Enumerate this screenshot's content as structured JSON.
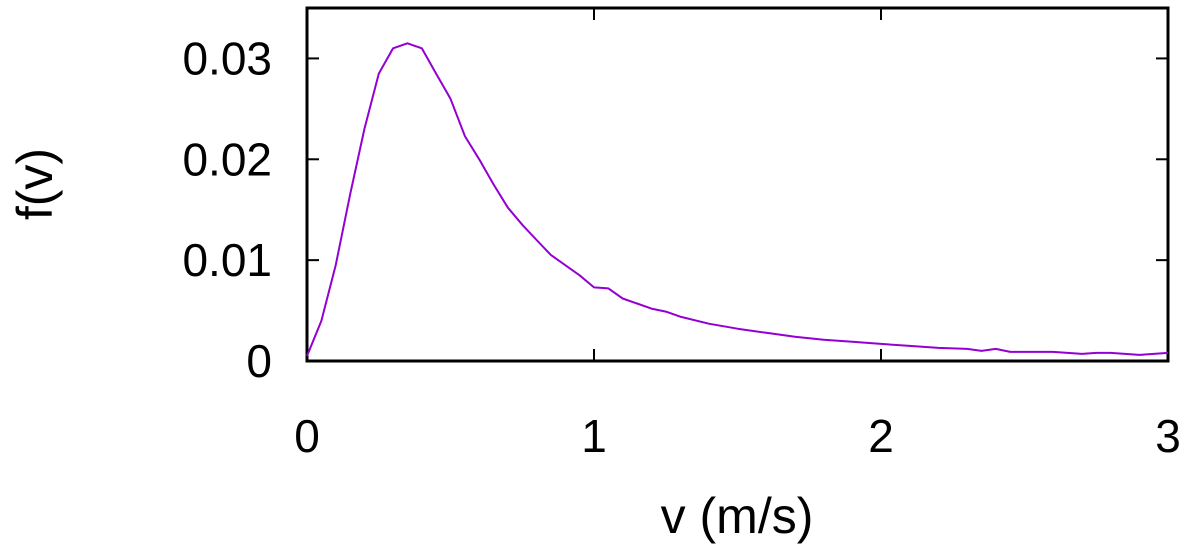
{
  "chart_data": {
    "type": "line",
    "xlabel": "v (m/s)",
    "ylabel": "f(v)",
    "xlim": [
      0,
      3
    ],
    "ylim": [
      0,
      0.035
    ],
    "x_ticks": [
      "0",
      "1",
      "2",
      "3"
    ],
    "y_ticks": [
      "0",
      "0.01",
      "0.02",
      "0.03"
    ],
    "grid": false,
    "series": [
      {
        "color": "#9400d3",
        "x": [
          0,
          0.05,
          0.1,
          0.15,
          0.2,
          0.25,
          0.3,
          0.35,
          0.4,
          0.45,
          0.5,
          0.55,
          0.6,
          0.65,
          0.7,
          0.75,
          0.8,
          0.85,
          0.9,
          0.95,
          1.0,
          1.05,
          1.1,
          1.15,
          1.2,
          1.25,
          1.3,
          1.4,
          1.5,
          1.6,
          1.7,
          1.8,
          1.9,
          2.0,
          2.1,
          2.2,
          2.3,
          2.35,
          2.4,
          2.45,
          2.5,
          2.6,
          2.7,
          2.75,
          2.8,
          2.9,
          3.0
        ],
        "y": [
          0.0005,
          0.004,
          0.0095,
          0.0165,
          0.023,
          0.0285,
          0.031,
          0.0315,
          0.031,
          0.0285,
          0.026,
          0.0223,
          0.02,
          0.0175,
          0.0152,
          0.0135,
          0.012,
          0.0105,
          0.0095,
          0.0085,
          0.0073,
          0.0072,
          0.0062,
          0.0057,
          0.0052,
          0.0049,
          0.0044,
          0.0037,
          0.0032,
          0.0028,
          0.0024,
          0.0021,
          0.0019,
          0.0017,
          0.0015,
          0.0013,
          0.0012,
          0.001,
          0.0012,
          0.0009,
          0.0009,
          0.0009,
          0.0007,
          0.0008,
          0.0008,
          0.0006,
          0.0008
        ]
      }
    ]
  }
}
